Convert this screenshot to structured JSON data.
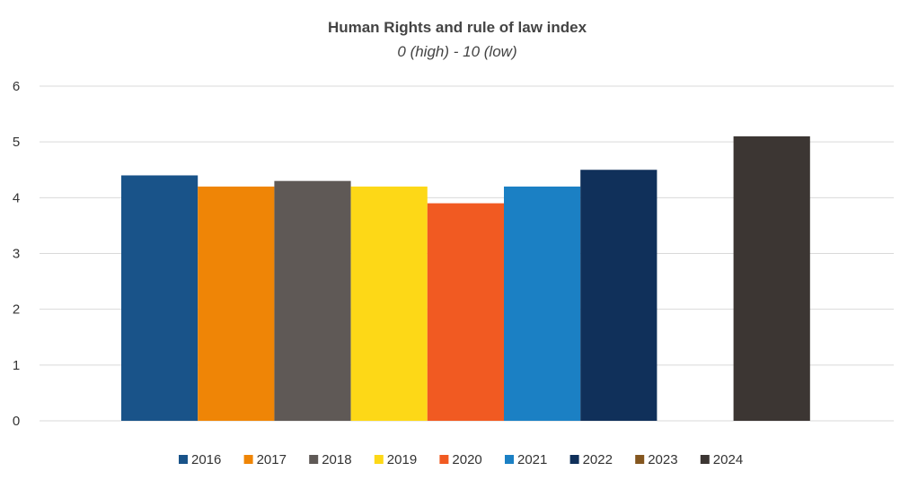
{
  "chart_data": {
    "type": "bar",
    "title": "Human Rights and rule of law index",
    "subtitle": "0 (high) - 10 (low)",
    "xlabel": "",
    "ylabel": "",
    "ylim": [
      0,
      6
    ],
    "yticks": [
      0,
      1,
      2,
      3,
      4,
      5,
      6
    ],
    "grid": true,
    "legend_position": "bottom",
    "series": [
      {
        "name": "2016",
        "value": 4.4,
        "color": "#195389"
      },
      {
        "name": "2017",
        "value": 4.2,
        "color": "#ef8506"
      },
      {
        "name": "2018",
        "value": 4.3,
        "color": "#5f5956"
      },
      {
        "name": "2019",
        "value": 4.2,
        "color": "#fdd817"
      },
      {
        "name": "2020",
        "value": 3.9,
        "color": "#f15a22"
      },
      {
        "name": "2021",
        "value": 4.2,
        "color": "#1b80c4"
      },
      {
        "name": "2022",
        "value": 4.5,
        "color": "#10305a"
      },
      {
        "name": "2023",
        "value": null,
        "color": "#84561f"
      },
      {
        "name": "2024",
        "value": 5.1,
        "color": "#3c3633"
      }
    ]
  }
}
